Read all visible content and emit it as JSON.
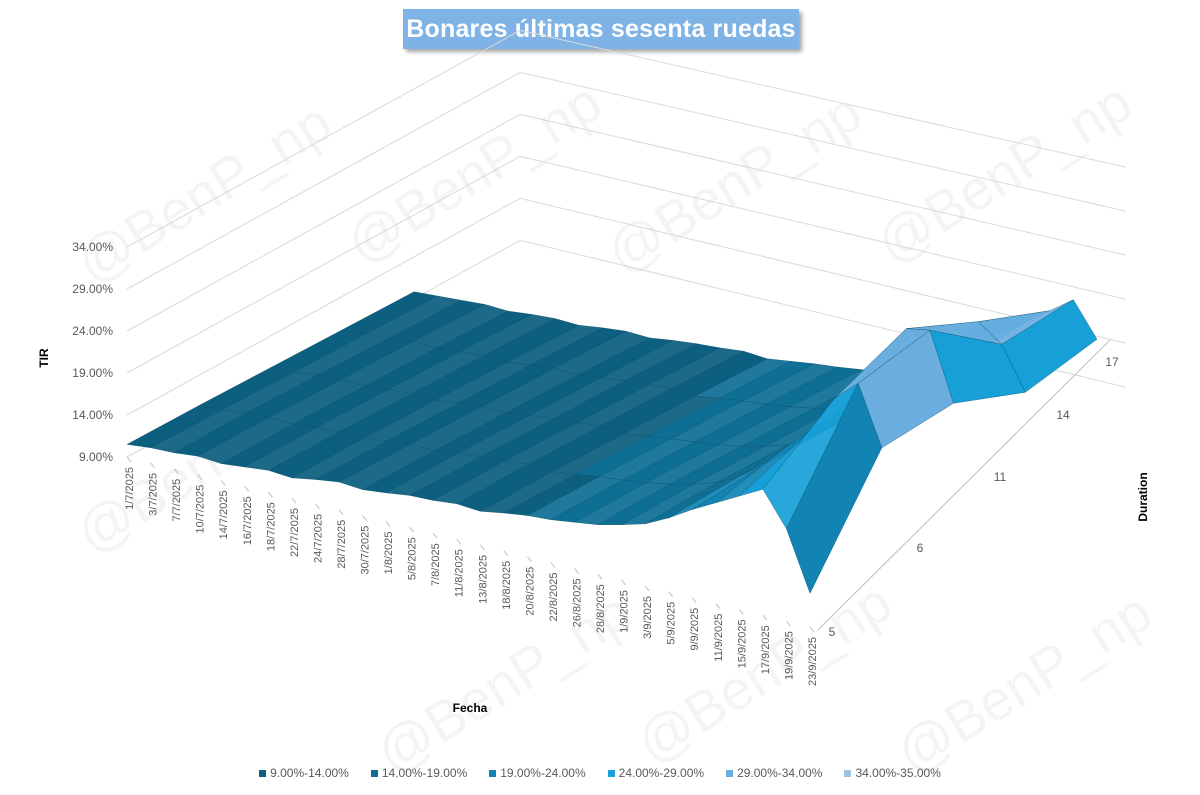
{
  "watermark": "@BenP_np",
  "colors": {
    "c1": "#0c5f7f",
    "c2": "#0e6f95",
    "c3": "#1184b4",
    "c4": "#17a0d7",
    "c5": "#6aaee0",
    "c6": "#9cc3e6",
    "grid": "#d9d9d9",
    "text": "#595959"
  },
  "chart_data": {
    "type": "surface",
    "title": "Bonares últimas sesenta ruedas",
    "xlabel": "Fecha",
    "ylabel": "TIR",
    "zlabel": "Duration",
    "y_ticks": [
      "9.00%",
      "14.00%",
      "19.00%",
      "24.00%",
      "29.00%",
      "34.00%"
    ],
    "ylim": [
      9,
      35
    ],
    "duration_ticks": [
      "5",
      "6",
      "11",
      "14",
      "17"
    ],
    "dates": [
      "1/7/2025",
      "3/7/2025",
      "7/7/2025",
      "10/7/2025",
      "14/7/2025",
      "16/7/2025",
      "18/7/2025",
      "22/7/2025",
      "24/7/2025",
      "28/7/2025",
      "30/7/2025",
      "1/8/2025",
      "5/8/2025",
      "7/8/2025",
      "11/8/2025",
      "13/8/2025",
      "18/8/2025",
      "20/8/2025",
      "22/8/2025",
      "26/8/2025",
      "28/8/2025",
      "1/9/2025",
      "3/9/2025",
      "5/9/2025",
      "9/9/2025",
      "11/9/2025",
      "15/9/2025",
      "17/9/2025",
      "19/9/2025",
      "23/9/2025"
    ],
    "series": [
      {
        "values": [
          10.5,
          10.8,
          10.9,
          11.2,
          11.0,
          11.3,
          11.6,
          11.4,
          11.9,
          12.3,
          12.1,
          12.4,
          12.8,
          12.9,
          13.2,
          13.0,
          13.5,
          13.9,
          14.1,
          14.5,
          14.9,
          15.6,
          16.4,
          17.8,
          19.5,
          21.0,
          22.5,
          24.0,
          20.0,
          13.0
        ]
      },
      {
        "values": [
          10.8,
          11.0,
          11.3,
          11.5,
          11.4,
          11.7,
          11.9,
          11.8,
          12.2,
          12.5,
          12.4,
          12.8,
          13.1,
          13.3,
          13.6,
          13.4,
          13.8,
          14.2,
          14.5,
          14.9,
          15.4,
          16.1,
          17.0,
          18.5,
          20.5,
          23.5,
          26.0,
          30.5,
          33.0,
          26.0
        ]
      },
      {
        "values": [
          11.0,
          11.2,
          11.5,
          11.7,
          11.6,
          11.9,
          12.1,
          12.0,
          12.4,
          12.7,
          12.6,
          13.0,
          13.3,
          13.5,
          13.8,
          13.6,
          14.0,
          14.4,
          14.7,
          15.1,
          15.6,
          16.3,
          17.2,
          18.8,
          21.0,
          24.5,
          28.0,
          34.5,
          35.0,
          27.0
        ]
      },
      {
        "values": [
          11.2,
          11.4,
          11.6,
          11.9,
          11.8,
          12.1,
          12.3,
          12.2,
          12.6,
          12.9,
          12.8,
          13.2,
          13.5,
          13.7,
          14.0,
          13.8,
          14.2,
          14.6,
          14.9,
          15.3,
          15.8,
          16.5,
          17.4,
          19.0,
          21.5,
          24.0,
          27.0,
          31.0,
          29.0,
          24.0
        ]
      },
      {
        "values": [
          11.4,
          11.6,
          11.8,
          12.0,
          11.9,
          12.2,
          12.4,
          12.3,
          12.7,
          13.0,
          12.9,
          13.3,
          13.6,
          13.8,
          14.1,
          13.9,
          14.3,
          14.7,
          15.0,
          15.4,
          15.9,
          16.6,
          17.5,
          19.2,
          21.0,
          23.5,
          26.0,
          28.0,
          30.0,
          26.0
        ]
      }
    ],
    "legend": [
      {
        "label": "9.00%-14.00%",
        "color": "#0c5f7f"
      },
      {
        "label": "14.00%-19.00%",
        "color": "#0e6f95"
      },
      {
        "label": "19.00%-24.00%",
        "color": "#1184b4"
      },
      {
        "label": "24.00%-29.00%",
        "color": "#17a0d7"
      },
      {
        "label": "29.00%-34.00%",
        "color": "#6aaee0"
      },
      {
        "label": "34.00%-35.00%",
        "color": "#9cc3e6"
      }
    ]
  }
}
